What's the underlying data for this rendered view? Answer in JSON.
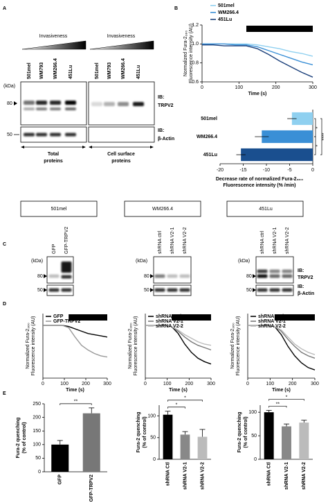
{
  "figure": {
    "panel_letters": [
      "A",
      "B",
      "C",
      "D",
      "E"
    ],
    "blot_a": {
      "invasiveness": [
        "Invasiveness",
        "Invasiveness"
      ],
      "lanes_total": [
        "501mel",
        "WM793",
        "WM266.4",
        "451Lu"
      ],
      "lanes_surface": [
        "501mel",
        "WM793",
        "WM266.4",
        "451Lu"
      ],
      "kda": "(kDa)",
      "markers": [
        "80",
        "50"
      ],
      "ib": [
        [
          "IB:",
          "TRPV2"
        ],
        [
          "IB:",
          "β-Actin"
        ]
      ],
      "groups": [
        [
          "Total",
          "proteins"
        ],
        [
          "Cell surface",
          "proteins"
        ]
      ]
    },
    "c_headers": [
      "501mel",
      "WM266.4",
      "451Lu"
    ],
    "blot_c": {
      "lanes": [
        [
          "GFP",
          "GFP-TRPV2"
        ],
        [
          "shRNA ctrl",
          "shRNA V2-1",
          "shRNA V2-2"
        ],
        [
          "shRNA ctrl",
          "shRNA V2-1",
          "shRNA V2-2"
        ]
      ],
      "kda": [
        "(kDa)",
        "(kDa)",
        "(kDa)"
      ],
      "markers": [
        [
          "80",
          "50"
        ],
        [
          "80",
          "50"
        ],
        [
          "80",
          "50"
        ]
      ],
      "ib": [
        [
          "IB:",
          "TRPV2"
        ],
        [
          "IB:",
          "β-Actin"
        ]
      ]
    }
  },
  "chart_data": [
    {
      "type": "line",
      "y_label": [
        "Normalized Fura-2₃₆₀",
        "Fluorescence intensity (AU)"
      ],
      "x_label": "Time (s)",
      "annotation": {
        "text": "MnCl₂",
        "x": [
          120,
          300
        ]
      },
      "x": [
        0,
        30,
        60,
        90,
        120,
        150,
        180,
        210,
        240,
        270,
        300
      ],
      "series": [
        {
          "name": "501mel",
          "color": "#8fd0f0",
          "values": [
            1,
            1,
            1,
            1,
            1,
            0.99,
            0.97,
            0.95,
            0.92,
            0.9,
            0.87
          ]
        },
        {
          "name": "WM266.4",
          "color": "#3a8fd6",
          "values": [
            1,
            1,
            1,
            0.99,
            0.99,
            0.97,
            0.93,
            0.89,
            0.85,
            0.81,
            0.78
          ]
        },
        {
          "name": "451Lu",
          "color": "#1a3f7a",
          "values": [
            0.99,
            0.99,
            0.98,
            0.98,
            0.98,
            0.95,
            0.89,
            0.82,
            0.76,
            0.7,
            0.65
          ]
        }
      ],
      "xlim": [
        0,
        300
      ],
      "xticks": [
        0,
        100,
        200,
        300
      ],
      "ylim": [
        0.6,
        1.2
      ],
      "yticks": [
        0.6,
        0.8,
        {
          "value": 1,
          "label": "1.0"
        },
        1.2
      ],
      "legend": "top-left"
    },
    {
      "type": "hbar",
      "categories": [
        "501mel",
        "WM266.4",
        "451Lu"
      ],
      "values": [
        -4.5,
        -11,
        -15.5
      ],
      "errors": [
        1,
        1.5,
        1
      ],
      "colors": [
        "#8fd0f0",
        "#3a8fd6",
        "#1a4f8f"
      ],
      "xlim": [
        -20,
        0
      ],
      "xticks": [
        -20,
        -15,
        -10,
        -5,
        0
      ],
      "x_label": [
        "Decrease rate of normalized Fura-2₃₆₀",
        "Fluorescence intensity (% /min)"
      ],
      "significance": [
        {
          "pair": [
            0,
            1
          ],
          "label": "*"
        },
        {
          "pair": [
            1,
            2
          ],
          "label": "*"
        },
        {
          "pair": [
            0,
            2
          ],
          "label": "****"
        }
      ]
    },
    {
      "type": "line",
      "y_label": [
        "Normalized Fura-2₃₆₀",
        "Fluorescence intensity (AU)"
      ],
      "x_label": "Time (s)",
      "annotation": {
        "text": "MnCl₂",
        "x": [
          120,
          300
        ]
      },
      "x": [
        0,
        30,
        60,
        90,
        120,
        150,
        180,
        210,
        240,
        270,
        300
      ],
      "series": [
        {
          "name": "GFP",
          "color": "#000000",
          "values": [
            1,
            1,
            1,
            1,
            0.99,
            0.97,
            0.95,
            0.93,
            0.92,
            0.91,
            0.9
          ]
        },
        {
          "name": "GFP-TRPV2",
          "color": "#999999",
          "values": [
            1,
            1,
            1,
            1,
            0.98,
            0.9,
            0.83,
            0.79,
            0.76,
            0.74,
            0.73
          ]
        }
      ],
      "xlim": [
        0,
        300
      ],
      "xticks": [
        0,
        100,
        200,
        300
      ],
      "ylim": [
        0.55,
        1.1
      ],
      "legend": "top-left"
    },
    {
      "type": "line",
      "y_label": [
        "Normalized Fura-2₃₆₀",
        "Fluorescence intensity (AU)"
      ],
      "x_label": "Time (s)",
      "annotation": {
        "text": "MnCl₂",
        "x": [
          120,
          300
        ]
      },
      "x": [
        0,
        30,
        60,
        90,
        120,
        150,
        180,
        210,
        240,
        270,
        300
      ],
      "series": [
        {
          "name": "shRNA Ctrl",
          "color": "#000000",
          "values": [
            1,
            1,
            1,
            1,
            0.99,
            0.93,
            0.84,
            0.77,
            0.72,
            0.69,
            0.67
          ]
        },
        {
          "name": "shRNA V2-1",
          "color": "#777777",
          "values": [
            1,
            1,
            1,
            1,
            0.99,
            0.95,
            0.9,
            0.86,
            0.83,
            0.81,
            0.79
          ]
        },
        {
          "name": "shRNA V2-2",
          "color": "#bbbbbb",
          "values": [
            1,
            1,
            1,
            1,
            0.99,
            0.96,
            0.92,
            0.89,
            0.86,
            0.84,
            0.83
          ]
        }
      ],
      "xlim": [
        0,
        300
      ],
      "xticks": [
        0,
        100,
        200,
        300
      ],
      "ylim": [
        0.55,
        1.1
      ],
      "legend": "top-left"
    },
    {
      "type": "line",
      "y_label": [
        "Normalized Fura-2₃₆₀",
        "Fluorescence intensity (AU)"
      ],
      "x_label": "Time (s)",
      "annotation": {
        "text": "MnCl₂",
        "x": [
          120,
          300
        ]
      },
      "x": [
        0,
        30,
        60,
        90,
        120,
        150,
        180,
        210,
        240,
        270,
        300
      ],
      "series": [
        {
          "name": "shRNA Ctrl",
          "color": "#000000",
          "values": [
            1,
            1,
            1,
            1,
            0.99,
            0.92,
            0.82,
            0.74,
            0.68,
            0.64,
            0.62
          ]
        },
        {
          "name": "shRNA V2-1",
          "color": "#777777",
          "values": [
            1,
            1,
            1,
            1,
            0.99,
            0.95,
            0.88,
            0.82,
            0.77,
            0.74,
            0.72
          ]
        },
        {
          "name": "shRNA V2-2",
          "color": "#bbbbbb",
          "values": [
            1,
            1,
            1,
            1,
            0.99,
            0.96,
            0.9,
            0.84,
            0.8,
            0.77,
            0.75
          ]
        }
      ],
      "xlim": [
        0,
        300
      ],
      "xticks": [
        0,
        100,
        200,
        300
      ],
      "ylim": [
        0.55,
        1.1
      ],
      "legend": "top-left"
    },
    {
      "type": "bar",
      "categories": [
        "GFP",
        "GFP-TRPV2"
      ],
      "values": [
        100,
        215
      ],
      "errors": [
        15,
        20
      ],
      "colors": [
        "#000000",
        "#777777"
      ],
      "ylim": [
        0,
        250
      ],
      "yticks": [
        0,
        50,
        100,
        150,
        200,
        250
      ],
      "y_label": [
        "Fura-2 quenching",
        "(% of control)"
      ],
      "significance": [
        {
          "pair": [
            0,
            1
          ],
          "label": "**"
        }
      ]
    },
    {
      "type": "bar",
      "categories": [
        "shRNA Ctl",
        "shRNA V2-1",
        "shRNA V2-2"
      ],
      "values": [
        103,
        57,
        52
      ],
      "errors": [
        8,
        7,
        17
      ],
      "colors": [
        "#000000",
        "#888888",
        "#bbbbbb"
      ],
      "ylim": [
        0,
        125
      ],
      "yticks": [
        0,
        50,
        100
      ],
      "y_label": [
        "Fura-2 quenching",
        "(% of control)"
      ],
      "significance": [
        {
          "pair": [
            0,
            1
          ],
          "label": "*"
        },
        {
          "pair": [
            0,
            2
          ],
          "label": "*"
        }
      ]
    },
    {
      "type": "bar",
      "categories": [
        "shRNA Ctl",
        "shRNA V2-1",
        "shRNA V2-2"
      ],
      "values": [
        100,
        70,
        78
      ],
      "errors": [
        4,
        5,
        5
      ],
      "colors": [
        "#000000",
        "#888888",
        "#bbbbbb"
      ],
      "ylim": [
        0,
        115
      ],
      "yticks": [
        0,
        50,
        100
      ],
      "y_label": [
        "Fura-2 quenching",
        "(% of control)"
      ],
      "significance": [
        {
          "pair": [
            0,
            1
          ],
          "label": "**"
        },
        {
          "pair": [
            0,
            2
          ],
          "label": "*"
        }
      ]
    }
  ]
}
